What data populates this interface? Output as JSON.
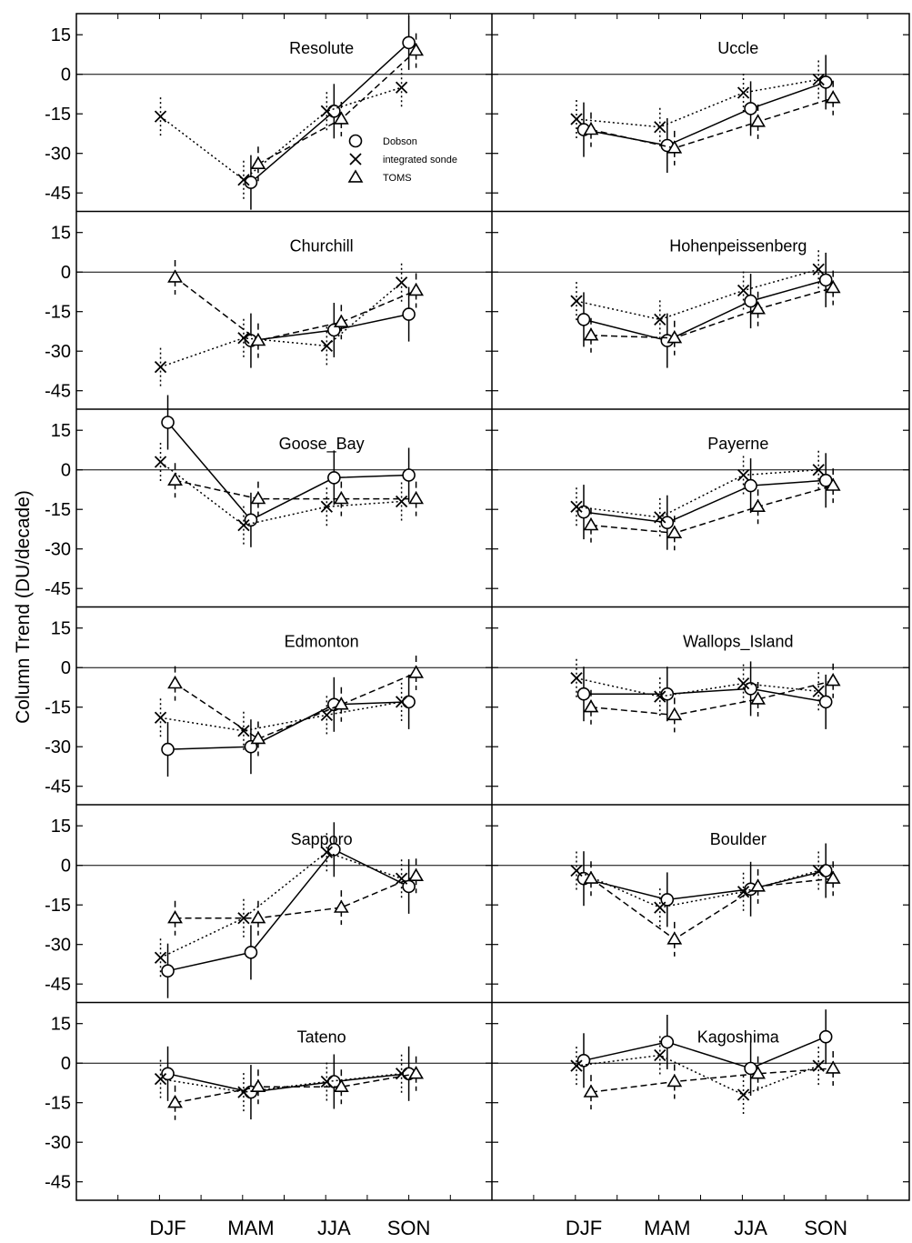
{
  "figure": {
    "ylabel": "Column Trend (DU/decade)",
    "xticks": [
      "DJF",
      "MAM",
      "JJA",
      "SON"
    ],
    "yticks": [
      15,
      0,
      -15,
      -30,
      -45
    ]
  },
  "legend": {
    "entries": [
      {
        "marker": "circle",
        "label": "Dobson",
        "linestyle": "solid"
      },
      {
        "marker": "x",
        "label": "integrated sonde",
        "linestyle": "dotted"
      },
      {
        "marker": "triangle",
        "label": "TOMS",
        "linestyle": "dashed"
      }
    ]
  },
  "chart_data": [
    {
      "type": "line",
      "title": "Resolute",
      "categories": [
        "DJF",
        "MAM",
        "JJA",
        "SON"
      ],
      "ylim": [
        -52,
        23
      ],
      "series": [
        {
          "name": "Dobson",
          "values": [
            null,
            -41,
            -14,
            12
          ]
        },
        {
          "name": "integrated sonde",
          "values": [
            -16,
            -40,
            -14,
            -5
          ]
        },
        {
          "name": "TOMS",
          "values": [
            null,
            -34,
            -17,
            9
          ]
        }
      ]
    },
    {
      "type": "line",
      "title": "Uccle",
      "categories": [
        "DJF",
        "MAM",
        "JJA",
        "SON"
      ],
      "ylim": [
        -52,
        23
      ],
      "series": [
        {
          "name": "Dobson",
          "values": [
            -21,
            -27,
            -13,
            -3
          ]
        },
        {
          "name": "integrated sonde",
          "values": [
            -17,
            -20,
            -7,
            -2
          ]
        },
        {
          "name": "TOMS",
          "values": [
            -21,
            -28,
            -18,
            -9
          ]
        }
      ]
    },
    {
      "type": "line",
      "title": "Churchill",
      "categories": [
        "DJF",
        "MAM",
        "JJA",
        "SON"
      ],
      "ylim": [
        -52,
        23
      ],
      "series": [
        {
          "name": "Dobson",
          "values": [
            null,
            -26,
            -22,
            -16
          ]
        },
        {
          "name": "integrated sonde",
          "values": [
            -36,
            -25,
            -28,
            -4
          ]
        },
        {
          "name": "TOMS",
          "values": [
            -2,
            -26,
            -19,
            -7
          ]
        }
      ]
    },
    {
      "type": "line",
      "title": "Hohenpeissenberg",
      "categories": [
        "DJF",
        "MAM",
        "JJA",
        "SON"
      ],
      "ylim": [
        -52,
        23
      ],
      "series": [
        {
          "name": "Dobson",
          "values": [
            -18,
            -26,
            -11,
            -3
          ]
        },
        {
          "name": "integrated sonde",
          "values": [
            -11,
            -18,
            -7,
            1
          ]
        },
        {
          "name": "TOMS",
          "values": [
            -24,
            -25,
            -14,
            -6
          ]
        }
      ]
    },
    {
      "type": "line",
      "title": "Goose_Bay",
      "categories": [
        "DJF",
        "MAM",
        "JJA",
        "SON"
      ],
      "ylim": [
        -52,
        23
      ],
      "series": [
        {
          "name": "Dobson",
          "values": [
            18,
            -19,
            -3,
            -2
          ]
        },
        {
          "name": "integrated sonde",
          "values": [
            3,
            -21,
            -14,
            -12
          ]
        },
        {
          "name": "TOMS",
          "values": [
            -4,
            -11,
            -11,
            -11
          ]
        }
      ]
    },
    {
      "type": "line",
      "title": "Payerne",
      "categories": [
        "DJF",
        "MAM",
        "JJA",
        "SON"
      ],
      "ylim": [
        -52,
        23
      ],
      "series": [
        {
          "name": "Dobson",
          "values": [
            -16,
            -20,
            -6,
            -4
          ]
        },
        {
          "name": "integrated sonde",
          "values": [
            -14,
            -18,
            -2,
            0
          ]
        },
        {
          "name": "TOMS",
          "values": [
            -21,
            -24,
            -14,
            -6
          ]
        }
      ]
    },
    {
      "type": "line",
      "title": "Edmonton",
      "categories": [
        "DJF",
        "MAM",
        "JJA",
        "SON"
      ],
      "ylim": [
        -52,
        23
      ],
      "series": [
        {
          "name": "Dobson",
          "values": [
            -31,
            -30,
            -14,
            -13
          ]
        },
        {
          "name": "integrated sonde",
          "values": [
            -19,
            -24,
            -18,
            -13
          ]
        },
        {
          "name": "TOMS",
          "values": [
            -6,
            -27,
            -14,
            -2
          ]
        }
      ]
    },
    {
      "type": "line",
      "title": "Wallops_Island",
      "categories": [
        "DJF",
        "MAM",
        "JJA",
        "SON"
      ],
      "ylim": [
        -52,
        23
      ],
      "series": [
        {
          "name": "Dobson",
          "values": [
            -10,
            -10,
            -8,
            -13
          ]
        },
        {
          "name": "integrated sonde",
          "values": [
            -4,
            -11,
            -6,
            -9
          ]
        },
        {
          "name": "TOMS",
          "values": [
            -15,
            -18,
            -12,
            -5
          ]
        }
      ]
    },
    {
      "type": "line",
      "title": "Sapporo",
      "categories": [
        "DJF",
        "MAM",
        "JJA",
        "SON"
      ],
      "ylim": [
        -52,
        23
      ],
      "series": [
        {
          "name": "Dobson",
          "values": [
            -40,
            -33,
            6,
            -8
          ]
        },
        {
          "name": "integrated sonde",
          "values": [
            -35,
            -20,
            5,
            -5
          ]
        },
        {
          "name": "TOMS",
          "values": [
            -20,
            -20,
            -16,
            -4
          ]
        }
      ]
    },
    {
      "type": "line",
      "title": "Boulder",
      "categories": [
        "DJF",
        "MAM",
        "JJA",
        "SON"
      ],
      "ylim": [
        -52,
        23
      ],
      "series": [
        {
          "name": "Dobson",
          "values": [
            -5,
            -13,
            -9,
            -2
          ]
        },
        {
          "name": "integrated sonde",
          "values": [
            -2,
            -16,
            -10,
            -2
          ]
        },
        {
          "name": "TOMS",
          "values": [
            -5,
            -28,
            -8,
            -5
          ]
        }
      ]
    },
    {
      "type": "line",
      "title": "Tateno",
      "categories": [
        "DJF",
        "MAM",
        "JJA",
        "SON"
      ],
      "ylim": [
        -52,
        23
      ],
      "series": [
        {
          "name": "Dobson",
          "values": [
            -4,
            -11,
            -7,
            -4
          ]
        },
        {
          "name": "integrated sonde",
          "values": [
            -6,
            -11,
            -7,
            -4
          ]
        },
        {
          "name": "TOMS",
          "values": [
            -15,
            -9,
            -9,
            -4
          ]
        }
      ]
    },
    {
      "type": "line",
      "title": "Kagoshima",
      "categories": [
        "DJF",
        "MAM",
        "JJA",
        "SON"
      ],
      "ylim": [
        -52,
        23
      ],
      "series": [
        {
          "name": "Dobson",
          "values": [
            1,
            8,
            -2,
            10
          ]
        },
        {
          "name": "integrated sonde",
          "values": [
            -1,
            3,
            -12,
            -1
          ]
        },
        {
          "name": "TOMS",
          "values": [
            -11,
            -7,
            -4,
            -2
          ]
        }
      ]
    }
  ]
}
